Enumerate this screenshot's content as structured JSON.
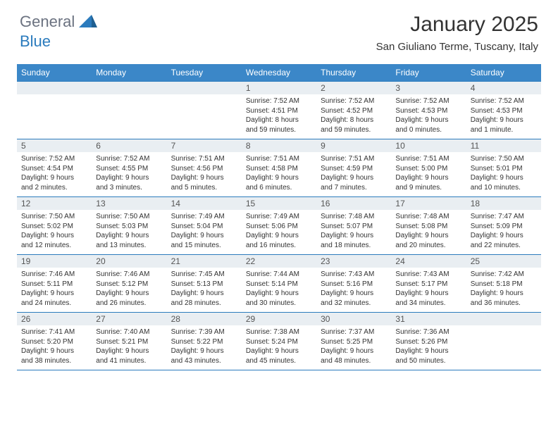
{
  "brand": {
    "part1": "General",
    "part2": "Blue"
  },
  "title": "January 2025",
  "subtitle": "San Giuliano Terme, Tuscany, Italy",
  "colors": {
    "header_bg": "#3b87c8",
    "row_border": "#2b7bbd",
    "daynum_bg": "#e9eef2",
    "text": "#333333",
    "brand_gray": "#6b7280",
    "brand_blue": "#2b7bbd",
    "background": "#ffffff"
  },
  "day_headers": [
    "Sunday",
    "Monday",
    "Tuesday",
    "Wednesday",
    "Thursday",
    "Friday",
    "Saturday"
  ],
  "first_weekday_index": 3,
  "days": [
    {
      "n": 1,
      "sunrise": "7:52 AM",
      "sunset": "4:51 PM",
      "daylight": "8 hours and 59 minutes."
    },
    {
      "n": 2,
      "sunrise": "7:52 AM",
      "sunset": "4:52 PM",
      "daylight": "8 hours and 59 minutes."
    },
    {
      "n": 3,
      "sunrise": "7:52 AM",
      "sunset": "4:53 PM",
      "daylight": "9 hours and 0 minutes."
    },
    {
      "n": 4,
      "sunrise": "7:52 AM",
      "sunset": "4:53 PM",
      "daylight": "9 hours and 1 minute."
    },
    {
      "n": 5,
      "sunrise": "7:52 AM",
      "sunset": "4:54 PM",
      "daylight": "9 hours and 2 minutes."
    },
    {
      "n": 6,
      "sunrise": "7:52 AM",
      "sunset": "4:55 PM",
      "daylight": "9 hours and 3 minutes."
    },
    {
      "n": 7,
      "sunrise": "7:51 AM",
      "sunset": "4:56 PM",
      "daylight": "9 hours and 5 minutes."
    },
    {
      "n": 8,
      "sunrise": "7:51 AM",
      "sunset": "4:58 PM",
      "daylight": "9 hours and 6 minutes."
    },
    {
      "n": 9,
      "sunrise": "7:51 AM",
      "sunset": "4:59 PM",
      "daylight": "9 hours and 7 minutes."
    },
    {
      "n": 10,
      "sunrise": "7:51 AM",
      "sunset": "5:00 PM",
      "daylight": "9 hours and 9 minutes."
    },
    {
      "n": 11,
      "sunrise": "7:50 AM",
      "sunset": "5:01 PM",
      "daylight": "9 hours and 10 minutes."
    },
    {
      "n": 12,
      "sunrise": "7:50 AM",
      "sunset": "5:02 PM",
      "daylight": "9 hours and 12 minutes."
    },
    {
      "n": 13,
      "sunrise": "7:50 AM",
      "sunset": "5:03 PM",
      "daylight": "9 hours and 13 minutes."
    },
    {
      "n": 14,
      "sunrise": "7:49 AM",
      "sunset": "5:04 PM",
      "daylight": "9 hours and 15 minutes."
    },
    {
      "n": 15,
      "sunrise": "7:49 AM",
      "sunset": "5:06 PM",
      "daylight": "9 hours and 16 minutes."
    },
    {
      "n": 16,
      "sunrise": "7:48 AM",
      "sunset": "5:07 PM",
      "daylight": "9 hours and 18 minutes."
    },
    {
      "n": 17,
      "sunrise": "7:48 AM",
      "sunset": "5:08 PM",
      "daylight": "9 hours and 20 minutes."
    },
    {
      "n": 18,
      "sunrise": "7:47 AM",
      "sunset": "5:09 PM",
      "daylight": "9 hours and 22 minutes."
    },
    {
      "n": 19,
      "sunrise": "7:46 AM",
      "sunset": "5:11 PM",
      "daylight": "9 hours and 24 minutes."
    },
    {
      "n": 20,
      "sunrise": "7:46 AM",
      "sunset": "5:12 PM",
      "daylight": "9 hours and 26 minutes."
    },
    {
      "n": 21,
      "sunrise": "7:45 AM",
      "sunset": "5:13 PM",
      "daylight": "9 hours and 28 minutes."
    },
    {
      "n": 22,
      "sunrise": "7:44 AM",
      "sunset": "5:14 PM",
      "daylight": "9 hours and 30 minutes."
    },
    {
      "n": 23,
      "sunrise": "7:43 AM",
      "sunset": "5:16 PM",
      "daylight": "9 hours and 32 minutes."
    },
    {
      "n": 24,
      "sunrise": "7:43 AM",
      "sunset": "5:17 PM",
      "daylight": "9 hours and 34 minutes."
    },
    {
      "n": 25,
      "sunrise": "7:42 AM",
      "sunset": "5:18 PM",
      "daylight": "9 hours and 36 minutes."
    },
    {
      "n": 26,
      "sunrise": "7:41 AM",
      "sunset": "5:20 PM",
      "daylight": "9 hours and 38 minutes."
    },
    {
      "n": 27,
      "sunrise": "7:40 AM",
      "sunset": "5:21 PM",
      "daylight": "9 hours and 41 minutes."
    },
    {
      "n": 28,
      "sunrise": "7:39 AM",
      "sunset": "5:22 PM",
      "daylight": "9 hours and 43 minutes."
    },
    {
      "n": 29,
      "sunrise": "7:38 AM",
      "sunset": "5:24 PM",
      "daylight": "9 hours and 45 minutes."
    },
    {
      "n": 30,
      "sunrise": "7:37 AM",
      "sunset": "5:25 PM",
      "daylight": "9 hours and 48 minutes."
    },
    {
      "n": 31,
      "sunrise": "7:36 AM",
      "sunset": "5:26 PM",
      "daylight": "9 hours and 50 minutes."
    }
  ],
  "labels": {
    "sunrise": "Sunrise:",
    "sunset": "Sunset:",
    "daylight": "Daylight:"
  }
}
